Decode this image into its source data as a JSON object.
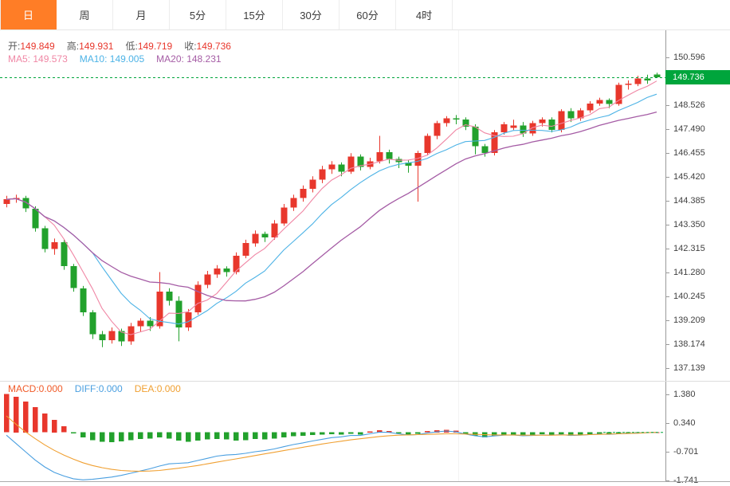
{
  "tabs": {
    "items": [
      {
        "label": "日",
        "active": true
      },
      {
        "label": "周",
        "active": false
      },
      {
        "label": "月",
        "active": false
      },
      {
        "label": "5分",
        "active": false
      },
      {
        "label": "15分",
        "active": false
      },
      {
        "label": "30分",
        "active": false
      },
      {
        "label": "60分",
        "active": false
      },
      {
        "label": "4时",
        "active": false
      }
    ]
  },
  "ohlc": {
    "o_label": "开:",
    "o": "149.849",
    "h_label": "高:",
    "h": "149.931",
    "l_label": "低:",
    "l": "149.719",
    "c_label": "收:",
    "c": "149.736"
  },
  "ma": {
    "ma5_label": "MA5:",
    "ma5": "149.573",
    "ma10_label": "MA10:",
    "ma10": "149.005",
    "ma20_label": "MA20:",
    "ma20": "148.231"
  },
  "price_axis": {
    "labels": [
      "150.596",
      "148.526",
      "147.490",
      "146.455",
      "145.420",
      "144.385",
      "143.350",
      "142.315",
      "141.280",
      "140.245",
      "139.209",
      "138.174",
      "137.139"
    ],
    "current": "149.736"
  },
  "macd_header": {
    "macd_label": "MACD:",
    "macd": "0.000",
    "diff_label": "DIFF:",
    "diff": "0.000",
    "dea_label": "DEA:",
    "dea": "0.000"
  },
  "macd_axis": {
    "labels": [
      "1.380",
      "0.340",
      "-0.701",
      "-1.741"
    ]
  },
  "colors": {
    "accent_orange": "#ff7d26",
    "up_red": "#e8372c",
    "down_green": "#22a12c",
    "tag_green": "#00a53c",
    "ma5_pink": "#f087a5",
    "ma10_blue": "#4db3e6",
    "ma20_purple": "#a55ca5",
    "diff_blue": "#4a9fe0",
    "dea_orange": "#f0a032",
    "macd_text": "#f05a28",
    "value_red": "#e8372c"
  },
  "chart_data": {
    "type": "candlestick",
    "title": "Daily candlestick chart with MA5/MA10/MA20 overlays and MACD sub-panel",
    "timeframe": "日",
    "legend_position": "top-left",
    "grid": "minimal",
    "current_price": 149.736,
    "last_bar": {
      "open": 149.849,
      "high": 149.931,
      "low": 149.719,
      "close": 149.736
    },
    "ma_values": {
      "MA5": 149.573,
      "MA10": 149.005,
      "MA20": 148.231
    },
    "ma_periods": [
      5,
      10,
      20
    ],
    "price_ylim": [
      137.139,
      150.596
    ],
    "price_axis_ticks": [
      150.596,
      148.526,
      147.49,
      146.455,
      145.42,
      144.385,
      143.35,
      142.315,
      141.28,
      140.245,
      139.209,
      138.174,
      137.139
    ],
    "candles": [
      [
        144.25,
        144.6,
        144.1,
        144.45
      ],
      [
        144.45,
        144.65,
        144.3,
        144.5
      ],
      [
        144.5,
        144.6,
        143.9,
        144.05
      ],
      [
        144.05,
        144.15,
        143.05,
        143.2
      ],
      [
        143.2,
        143.3,
        142.15,
        142.3
      ],
      [
        142.3,
        142.75,
        142.05,
        142.6
      ],
      [
        142.6,
        142.7,
        141.4,
        141.55
      ],
      [
        141.55,
        141.65,
        140.45,
        140.6
      ],
      [
        140.6,
        140.7,
        139.4,
        139.55
      ],
      [
        139.55,
        139.65,
        138.4,
        138.6
      ],
      [
        138.6,
        138.75,
        138.05,
        138.35
      ],
      [
        138.35,
        138.9,
        138.2,
        138.75
      ],
      [
        138.75,
        138.85,
        138.1,
        138.3
      ],
      [
        138.3,
        139.1,
        138.15,
        138.95
      ],
      [
        138.95,
        139.3,
        138.7,
        139.2
      ],
      [
        139.2,
        139.35,
        138.75,
        138.95
      ],
      [
        138.95,
        141.3,
        138.85,
        140.45
      ],
      [
        140.45,
        140.6,
        139.85,
        140.05
      ],
      [
        140.05,
        140.25,
        138.3,
        138.9
      ],
      [
        138.9,
        139.7,
        138.75,
        139.55
      ],
      [
        139.55,
        140.9,
        139.45,
        140.75
      ],
      [
        140.75,
        141.35,
        140.6,
        141.2
      ],
      [
        141.2,
        141.6,
        141.05,
        141.45
      ],
      [
        141.45,
        141.55,
        141.1,
        141.3
      ],
      [
        141.3,
        142.15,
        141.2,
        142.0
      ],
      [
        142.0,
        142.7,
        141.9,
        142.55
      ],
      [
        142.55,
        143.1,
        142.4,
        142.95
      ],
      [
        142.95,
        143.05,
        142.6,
        142.8
      ],
      [
        142.8,
        143.55,
        142.7,
        143.4
      ],
      [
        143.4,
        144.25,
        143.3,
        144.1
      ],
      [
        144.1,
        144.65,
        143.95,
        144.5
      ],
      [
        144.5,
        145.05,
        144.35,
        144.9
      ],
      [
        144.9,
        145.45,
        144.75,
        145.3
      ],
      [
        145.3,
        145.9,
        145.15,
        145.75
      ],
      [
        145.75,
        146.1,
        145.55,
        145.95
      ],
      [
        145.95,
        146.05,
        145.45,
        145.65
      ],
      [
        145.65,
        146.45,
        145.55,
        146.3
      ],
      [
        146.3,
        146.4,
        145.7,
        145.85
      ],
      [
        145.85,
        146.25,
        145.75,
        146.1
      ],
      [
        146.1,
        147.2,
        146.0,
        146.5
      ],
      [
        146.5,
        146.6,
        146.0,
        146.2
      ],
      [
        146.2,
        146.3,
        145.8,
        146.05
      ],
      [
        146.05,
        146.15,
        145.6,
        145.9
      ],
      [
        145.9,
        146.55,
        144.35,
        146.45
      ],
      [
        146.45,
        147.3,
        146.35,
        147.2
      ],
      [
        147.2,
        147.85,
        147.05,
        147.75
      ],
      [
        147.75,
        148.05,
        147.6,
        147.95
      ],
      [
        147.95,
        148.1,
        147.7,
        147.9
      ],
      [
        147.9,
        148.0,
        147.45,
        147.6
      ],
      [
        147.6,
        147.7,
        146.4,
        146.75
      ],
      [
        146.75,
        146.85,
        146.3,
        146.45
      ],
      [
        146.45,
        147.45,
        146.35,
        147.35
      ],
      [
        147.35,
        147.8,
        147.25,
        147.7
      ],
      [
        147.55,
        147.9,
        147.45,
        147.65
      ],
      [
        147.65,
        147.8,
        147.15,
        147.3
      ],
      [
        147.3,
        147.85,
        147.2,
        147.75
      ],
      [
        147.75,
        148.0,
        147.6,
        147.9
      ],
      [
        147.9,
        148.0,
        147.35,
        147.45
      ],
      [
        147.45,
        148.35,
        147.35,
        148.27
      ],
      [
        148.27,
        148.4,
        147.8,
        147.95
      ],
      [
        147.95,
        148.4,
        147.85,
        148.3
      ],
      [
        148.3,
        148.7,
        148.2,
        148.6
      ],
      [
        148.6,
        148.85,
        148.5,
        148.75
      ],
      [
        148.75,
        148.82,
        148.4,
        148.58
      ],
      [
        148.58,
        149.5,
        148.5,
        149.4
      ],
      [
        149.4,
        149.6,
        149.2,
        149.45
      ],
      [
        149.45,
        149.8,
        149.35,
        149.68
      ],
      [
        149.68,
        149.85,
        149.45,
        149.6
      ],
      [
        149.849,
        149.931,
        149.719,
        149.736
      ]
    ],
    "macd": {
      "ylim": [
        -1.741,
        1.38
      ],
      "last": {
        "macd": 0.0,
        "diff": 0.0,
        "dea": 0.0
      },
      "hist": [
        1.4,
        1.3,
        1.12,
        0.92,
        0.68,
        0.45,
        0.22,
        -0.04,
        -0.18,
        -0.28,
        -0.34,
        -0.35,
        -0.32,
        -0.28,
        -0.24,
        -0.22,
        -0.18,
        -0.22,
        -0.3,
        -0.34,
        -0.3,
        -0.26,
        -0.24,
        -0.26,
        -0.3,
        -0.28,
        -0.24,
        -0.26,
        -0.22,
        -0.18,
        -0.14,
        -0.12,
        -0.1,
        -0.08,
        -0.06,
        -0.08,
        -0.05,
        -0.08,
        0.04,
        0.08,
        0.05,
        -0.04,
        -0.08,
        -0.05,
        0.05,
        0.08,
        0.1,
        0.06,
        -0.05,
        -0.12,
        -0.18,
        -0.14,
        -0.1,
        -0.08,
        -0.12,
        -0.1,
        -0.07,
        -0.1,
        -0.06,
        -0.12,
        -0.1,
        -0.08,
        -0.06,
        -0.08,
        -0.05,
        -0.04,
        -0.02,
        -0.01,
        0.0
      ],
      "diff": [
        -0.1,
        -0.4,
        -0.7,
        -1.0,
        -1.25,
        -1.45,
        -1.58,
        -1.68,
        -1.72,
        -1.7,
        -1.66,
        -1.62,
        -1.56,
        -1.48,
        -1.4,
        -1.32,
        -1.22,
        -1.14,
        -1.12,
        -1.1,
        -1.02,
        -0.94,
        -0.86,
        -0.82,
        -0.8,
        -0.76,
        -0.7,
        -0.66,
        -0.6,
        -0.52,
        -0.44,
        -0.38,
        -0.31,
        -0.25,
        -0.19,
        -0.16,
        -0.11,
        -0.11,
        -0.05,
        0.01,
        0.0,
        -0.05,
        -0.09,
        -0.08,
        -0.02,
        0.02,
        0.05,
        0.02,
        -0.06,
        -0.12,
        -0.16,
        -0.13,
        -0.1,
        -0.09,
        -0.12,
        -0.11,
        -0.09,
        -0.1,
        -0.08,
        -0.11,
        -0.1,
        -0.08,
        -0.06,
        -0.07,
        -0.05,
        -0.04,
        -0.02,
        -0.01,
        0.0
      ],
      "dea": [
        0.6,
        0.3,
        0.02,
        -0.22,
        -0.45,
        -0.65,
        -0.82,
        -0.97,
        -1.1,
        -1.2,
        -1.28,
        -1.34,
        -1.38,
        -1.4,
        -1.41,
        -1.4,
        -1.38,
        -1.34,
        -1.3,
        -1.25,
        -1.2,
        -1.14,
        -1.08,
        -1.02,
        -0.96,
        -0.9,
        -0.84,
        -0.78,
        -0.72,
        -0.66,
        -0.6,
        -0.54,
        -0.48,
        -0.42,
        -0.37,
        -0.32,
        -0.27,
        -0.23,
        -0.19,
        -0.15,
        -0.12,
        -0.1,
        -0.09,
        -0.08,
        -0.07,
        -0.06,
        -0.05,
        -0.05,
        -0.06,
        -0.07,
        -0.08,
        -0.09,
        -0.09,
        -0.09,
        -0.1,
        -0.1,
        -0.1,
        -0.1,
        -0.09,
        -0.09,
        -0.09,
        -0.08,
        -0.07,
        -0.06,
        -0.05,
        -0.04,
        -0.03,
        -0.01,
        0.0
      ]
    }
  }
}
